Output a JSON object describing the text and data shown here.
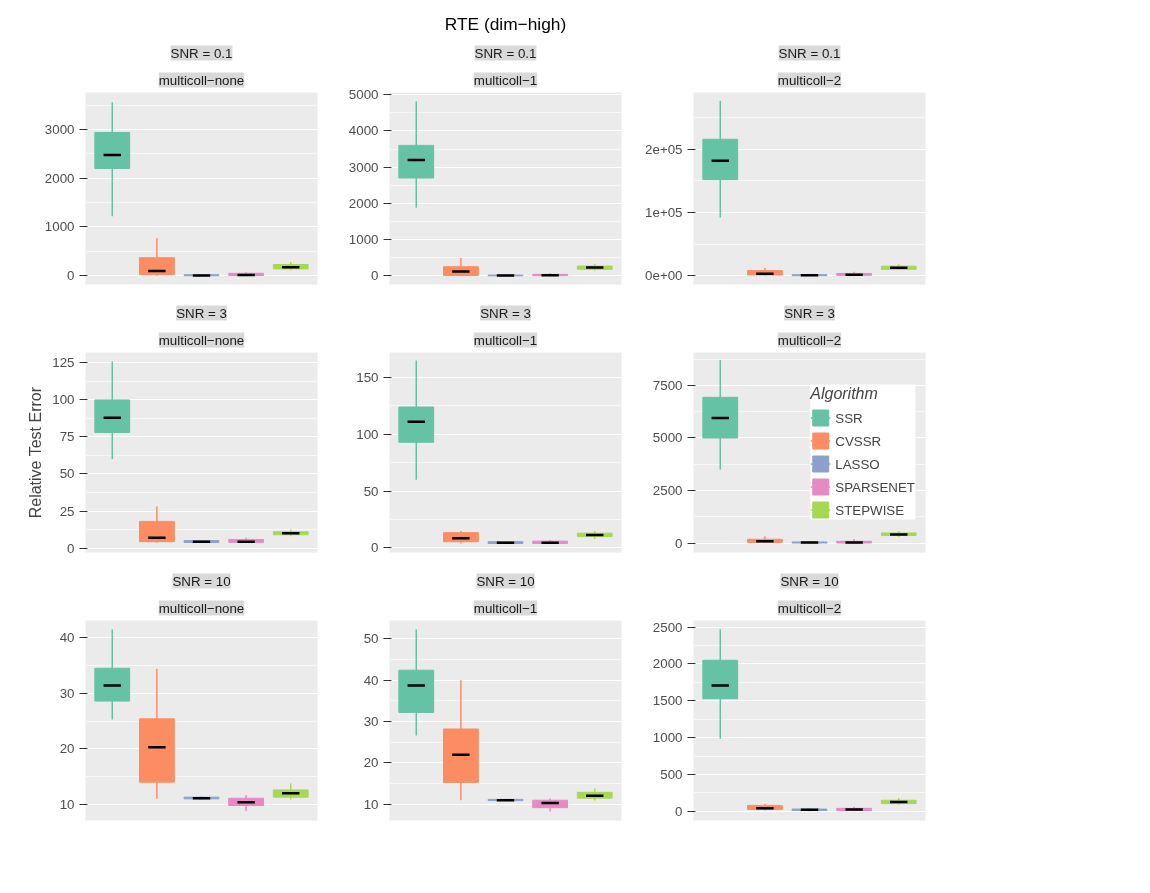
{
  "chart_data": [
    {
      "type": "box",
      "title": "SNR = 0.1",
      "subtitle": "multicoll−none",
      "categories": [
        null,
        null,
        null,
        null,
        null
      ],
      "ylim": [
        -180,
        3760
      ],
      "yticks": [
        0,
        1000,
        2000,
        3000
      ],
      "grid": "y",
      "tick_labels": "y",
      "series": [
        {
          "color": "#66c2a5",
          "boxes": [
            {
              "low": 1220,
              "q1": 2200,
              "median": 2480,
              "q3": 2940,
              "high": 3560
            },
            null,
            null,
            null,
            null
          ]
        },
        {
          "color": "#fc8d62",
          "boxes": [
            null,
            {
              "low": 0,
              "q1": 20,
              "median": 95,
              "q3": 370,
              "high": 770
            },
            null,
            null,
            null
          ]
        },
        {
          "color": "#8da0cb",
          "boxes": [
            null,
            null,
            {
              "low": 0,
              "q1": 0,
              "median": 5,
              "q3": 20,
              "high": 25
            },
            null,
            null
          ]
        },
        {
          "color": "#e78ac3",
          "boxes": [
            null,
            null,
            null,
            {
              "low": 0,
              "q1": 5,
              "median": 15,
              "q3": 50,
              "high": 70
            },
            null
          ]
        },
        {
          "color": "#a6d854",
          "boxes": [
            null,
            null,
            null,
            null,
            {
              "low": 120,
              "q1": 140,
              "median": 175,
              "q3": 230,
              "high": 280
            }
          ]
        }
      ]
    },
    {
      "type": "box",
      "title": "SNR = 0.1",
      "subtitle": "multicoll−1",
      "annotations": [
        "RTE (dim−high)"
      ],
      "categories": [
        null,
        null,
        null,
        null,
        null
      ],
      "ylim": [
        -240,
        5060
      ],
      "yticks": [
        0,
        1000,
        2000,
        3000,
        4000,
        5000
      ],
      "grid": "y",
      "tick_labels": "y",
      "series": [
        {
          "color": "#66c2a5",
          "boxes": [
            {
              "low": 1880,
              "q1": 2700,
              "median": 3200,
              "q3": 3600,
              "high": 4820
            },
            null,
            null,
            null,
            null
          ]
        },
        {
          "color": "#fc8d62",
          "boxes": [
            null,
            {
              "low": 0,
              "q1": 10,
              "median": 120,
              "q3": 250,
              "high": 490
            },
            null,
            null,
            null
          ]
        },
        {
          "color": "#8da0cb",
          "boxes": [
            null,
            null,
            {
              "low": 0,
              "q1": 0,
              "median": 5,
              "q3": 20,
              "high": 30
            },
            null,
            null
          ]
        },
        {
          "color": "#e78ac3",
          "boxes": [
            null,
            null,
            null,
            {
              "low": 0,
              "q1": 5,
              "median": 15,
              "q3": 40,
              "high": 70
            },
            null
          ]
        },
        {
          "color": "#a6d854",
          "boxes": [
            null,
            null,
            null,
            null,
            {
              "low": 140,
              "q1": 180,
              "median": 230,
              "q3": 270,
              "high": 330
            }
          ]
        }
      ]
    },
    {
      "type": "box",
      "title": "SNR = 0.1",
      "subtitle": "multicoll−2",
      "categories": [
        null,
        null,
        null,
        null,
        null
      ],
      "ylim": [
        -14000,
        290000
      ],
      "yticks": [
        {
          "value": 0,
          "label": "0e+00"
        },
        {
          "value": 100000,
          "label": "1e+05"
        },
        {
          "value": 200000,
          "label": "2e+05"
        }
      ],
      "grid": "y",
      "tick_labels": "y",
      "series": [
        {
          "color": "#66c2a5",
          "boxes": [
            {
              "low": 92000,
              "q1": 152000,
              "median": 182000,
              "q3": 216000,
              "high": 277000
            },
            null,
            null,
            null,
            null
          ]
        },
        {
          "color": "#fc8d62",
          "boxes": [
            null,
            {
              "low": 0,
              "q1": 1000,
              "median": 3000,
              "q3": 8000,
              "high": 12000
            },
            null,
            null,
            null
          ]
        },
        {
          "color": "#8da0cb",
          "boxes": [
            null,
            null,
            {
              "low": 0,
              "q1": 0,
              "median": 500,
              "q3": 1500,
              "high": 2000
            },
            null,
            null
          ]
        },
        {
          "color": "#e78ac3",
          "boxes": [
            null,
            null,
            null,
            {
              "low": 0,
              "q1": 500,
              "median": 1500,
              "q3": 3500,
              "high": 6000
            },
            null
          ]
        },
        {
          "color": "#a6d854",
          "boxes": [
            null,
            null,
            null,
            null,
            {
              "low": 9000,
              "q1": 10000,
              "median": 12500,
              "q3": 15000,
              "high": 18000
            }
          ]
        }
      ]
    },
    {
      "type": "box",
      "title": "SNR = 3",
      "subtitle": "multicoll−none",
      "ylabel": "Relative Test Error",
      "categories": [
        null,
        null,
        null,
        null,
        null
      ],
      "ylim": [
        -3,
        132
      ],
      "yticks": [
        0,
        25,
        50,
        75,
        100,
        125
      ],
      "grid": "y",
      "tick_labels": "y",
      "series": [
        {
          "color": "#66c2a5",
          "boxes": [
            {
              "low": 60,
              "q1": 78,
              "median": 88,
              "q3": 100,
              "high": 126
            },
            null,
            null,
            null,
            null
          ]
        },
        {
          "color": "#fc8d62",
          "boxes": [
            null,
            {
              "low": 3.5,
              "q1": 4.3,
              "median": 7,
              "q3": 18,
              "high": 28
            },
            null,
            null,
            null
          ]
        },
        {
          "color": "#8da0cb",
          "boxes": [
            null,
            null,
            {
              "low": 3.5,
              "q1": 3.8,
              "median": 4.2,
              "q3": 5,
              "high": 5.5
            },
            null,
            null
          ]
        },
        {
          "color": "#e78ac3",
          "boxes": [
            null,
            null,
            null,
            {
              "low": 3.5,
              "q1": 3.9,
              "median": 4.3,
              "q3": 5.8,
              "high": 7
            },
            null
          ]
        },
        {
          "color": "#a6d854",
          "boxes": [
            null,
            null,
            null,
            null,
            {
              "low": 8,
              "q1": 9,
              "median": 10,
              "q3": 11,
              "high": 12.5
            }
          ]
        }
      ]
    },
    {
      "type": "box",
      "title": "SNR = 3",
      "subtitle": "multicoll−1",
      "categories": [
        null,
        null,
        null,
        null,
        null
      ],
      "ylim": [
        -4,
        172
      ],
      "yticks": [
        0,
        50,
        100,
        150
      ],
      "grid": "y",
      "tick_labels": "y",
      "series": [
        {
          "color": "#66c2a5",
          "boxes": [
            {
              "low": 60,
              "q1": 93,
              "median": 111,
              "q3": 124,
              "high": 165
            },
            null,
            null,
            null,
            null
          ]
        },
        {
          "color": "#fc8d62",
          "boxes": [
            null,
            {
              "low": 4,
              "q1": 5.5,
              "median": 8.5,
              "q3": 13.5,
              "high": 15
            },
            null,
            null,
            null
          ]
        },
        {
          "color": "#8da0cb",
          "boxes": [
            null,
            null,
            {
              "low": 3.5,
              "q1": 4,
              "median": 4.5,
              "q3": 5.5,
              "high": 6
            },
            null,
            null
          ]
        },
        {
          "color": "#e78ac3",
          "boxes": [
            null,
            null,
            null,
            {
              "low": 3.5,
              "q1": 4,
              "median": 4.5,
              "q3": 6,
              "high": 7
            },
            null
          ]
        },
        {
          "color": "#a6d854",
          "boxes": [
            null,
            null,
            null,
            null,
            {
              "low": 8,
              "q1": 10,
              "median": 11.5,
              "q3": 13,
              "high": 15
            }
          ]
        }
      ]
    },
    {
      "type": "box",
      "title": "SNR = 3",
      "subtitle": "multicoll−2",
      "legend_title": "Algorithm",
      "legend": "right",
      "categories": [
        null,
        null,
        null,
        null,
        null
      ],
      "ylim": [
        -440,
        9060
      ],
      "yticks": [
        0,
        2500,
        5000,
        7500
      ],
      "grid": "y",
      "tick_labels": "y",
      "series": [
        {
          "name": "SSR",
          "color": "#66c2a5",
          "boxes": [
            {
              "low": 3500,
              "q1": 5000,
              "median": 5950,
              "q3": 6930,
              "high": 8700
            },
            null,
            null,
            null,
            null
          ]
        },
        {
          "name": "CVSSR",
          "color": "#fc8d62",
          "boxes": [
            null,
            {
              "low": 20,
              "q1": 40,
              "median": 90,
              "q3": 190,
              "high": 330
            },
            null,
            null,
            null
          ]
        },
        {
          "name": "LASSO",
          "color": "#8da0cb",
          "boxes": [
            null,
            null,
            {
              "low": 0,
              "q1": 10,
              "median": 30,
              "q3": 60,
              "high": 80
            },
            null,
            null
          ]
        },
        {
          "name": "SPARSENET",
          "color": "#e78ac3",
          "boxes": [
            null,
            null,
            null,
            {
              "low": 0,
              "q1": 10,
              "median": 30,
              "q3": 90,
              "high": 200
            },
            null
          ]
        },
        {
          "name": "STEPWISE",
          "color": "#a6d854",
          "boxes": [
            null,
            null,
            null,
            null,
            {
              "low": 300,
              "q1": 370,
              "median": 420,
              "q3": 490,
              "high": 580
            }
          ]
        }
      ]
    },
    {
      "type": "box",
      "title": "SNR = 10",
      "subtitle": "multicoll−none",
      "categories": [
        null,
        null,
        null,
        null,
        null
      ],
      "ylim": [
        7.1,
        43.1
      ],
      "yticks": [
        10,
        20,
        30,
        40
      ],
      "grid": "y",
      "tick_labels": "y",
      "series": [
        {
          "color": "#66c2a5",
          "boxes": [
            {
              "low": 25.3,
              "q1": 28.6,
              "median": 31.4,
              "q3": 34.5,
              "high": 41.5
            },
            null,
            null,
            null,
            null
          ]
        },
        {
          "color": "#fc8d62",
          "boxes": [
            null,
            {
              "low": 11,
              "q1": 14,
              "median": 20.3,
              "q3": 25.4,
              "high": 34.4
            },
            null,
            null,
            null
          ]
        },
        {
          "color": "#8da0cb",
          "boxes": [
            null,
            null,
            {
              "low": 10.9,
              "q1": 11,
              "median": 11.1,
              "q3": 11.3,
              "high": 11.4
            },
            null,
            null
          ]
        },
        {
          "color": "#e78ac3",
          "boxes": [
            null,
            null,
            null,
            {
              "low": 8.8,
              "q1": 9.8,
              "median": 10.4,
              "q3": 11.1,
              "high": 11.7
            },
            null
          ]
        },
        {
          "color": "#a6d854",
          "boxes": [
            null,
            null,
            null,
            null,
            {
              "low": 10.9,
              "q1": 11.3,
              "median": 12,
              "q3": 12.6,
              "high": 13.8
            }
          ]
        }
      ]
    },
    {
      "type": "box",
      "title": "SNR = 10",
      "subtitle": "multicoll−1",
      "categories": [
        null,
        null,
        null,
        null,
        null
      ],
      "ylim": [
        6.1,
        54.4
      ],
      "yticks": [
        10,
        20,
        30,
        40,
        50
      ],
      "grid": "y",
      "tick_labels": "y",
      "series": [
        {
          "color": "#66c2a5",
          "boxes": [
            {
              "low": 26.6,
              "q1": 32.2,
              "median": 38.7,
              "q3": 42.4,
              "high": 52.2
            },
            null,
            null,
            null,
            null
          ]
        },
        {
          "color": "#fc8d62",
          "boxes": [
            null,
            {
              "low": 11,
              "q1": 15.3,
              "median": 22,
              "q3": 28.2,
              "high": 40
            },
            null,
            null,
            null
          ]
        },
        {
          "color": "#8da0cb",
          "boxes": [
            null,
            null,
            {
              "low": 10.8,
              "q1": 10.9,
              "median": 11,
              "q3": 11.2,
              "high": 11.3
            },
            null,
            null
          ]
        },
        {
          "color": "#e78ac3",
          "boxes": [
            null,
            null,
            null,
            {
              "low": 8.3,
              "q1": 9.2,
              "median": 10.3,
              "q3": 11,
              "high": 11.4
            },
            null
          ]
        },
        {
          "color": "#a6d854",
          "boxes": [
            null,
            null,
            null,
            null,
            {
              "low": 10.9,
              "q1": 11.5,
              "median": 12.1,
              "q3": 12.9,
              "high": 13.8
            }
          ]
        }
      ]
    },
    {
      "type": "box",
      "title": "SNR = 10",
      "subtitle": "multicoll−2",
      "categories": [
        null,
        null,
        null,
        null,
        null
      ],
      "ylim": [
        -125,
        2590
      ],
      "yticks": [
        0,
        500,
        1000,
        1500,
        2000,
        2500
      ],
      "grid": "y",
      "tick_labels": "y",
      "series": [
        {
          "color": "#66c2a5",
          "boxes": [
            {
              "low": 985,
              "q1": 1527,
              "median": 1708,
              "q3": 2050,
              "high": 2470
            },
            null,
            null,
            null,
            null
          ]
        },
        {
          "color": "#fc8d62",
          "boxes": [
            null,
            {
              "low": 10,
              "q1": 25,
              "median": 40,
              "q3": 80,
              "high": 100
            },
            null,
            null,
            null
          ]
        },
        {
          "color": "#8da0cb",
          "boxes": [
            null,
            null,
            {
              "low": 0,
              "q1": 10,
              "median": 20,
              "q3": 30,
              "high": 40
            },
            null,
            null
          ]
        },
        {
          "color": "#e78ac3",
          "boxes": [
            null,
            null,
            null,
            {
              "low": 0,
              "q1": 10,
              "median": 25,
              "q3": 40,
              "high": 60
            },
            null
          ]
        },
        {
          "color": "#a6d854",
          "boxes": [
            null,
            null,
            null,
            null,
            {
              "low": 90,
              "q1": 105,
              "median": 125,
              "q3": 150,
              "high": 180
            }
          ]
        }
      ]
    }
  ]
}
